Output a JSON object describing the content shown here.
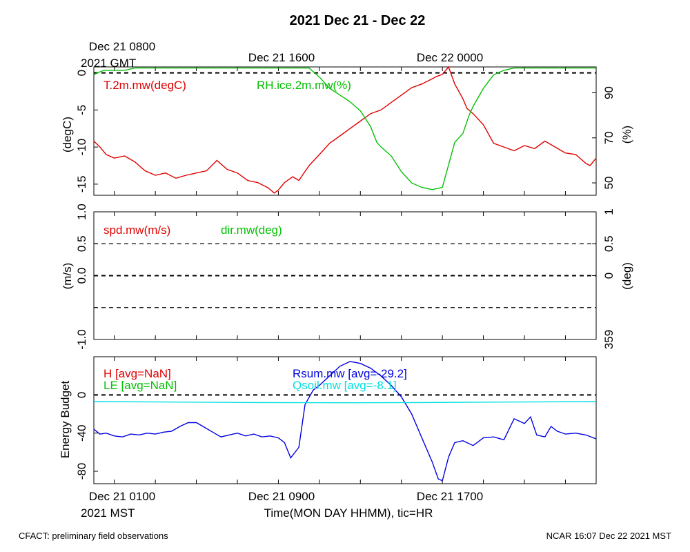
{
  "title": "2021 Dec 21 - Dec 22",
  "top_axis": {
    "gmt_label": "2021 GMT",
    "labels": [
      {
        "text": "Dec 21 0800",
        "hour": 0
      },
      {
        "text": "Dec 21 1600",
        "hour": 8
      },
      {
        "text": "Dec 22 0000",
        "hour": 16
      }
    ]
  },
  "bottom_axis": {
    "mst_label": "2021 MST",
    "xlabel": "Time(MON DAY HHMM), tic=HR",
    "labels": [
      {
        "text": "Dec 21 0100",
        "hour": 0
      },
      {
        "text": "Dec 21 0900",
        "hour": 8
      },
      {
        "text": "Dec 21 1700",
        "hour": 16
      }
    ]
  },
  "footer": {
    "left": "CFACT: preliminary field observations",
    "right": "NCAR 16:07 Dec 22 2021 MST"
  },
  "colors": {
    "red": "#e00000",
    "green": "#00c000",
    "blue": "#0000e0",
    "cyan": "#00e0e0",
    "axis": "#000000"
  },
  "chart_data": [
    {
      "type": "line",
      "panel": "temperature-rh",
      "x_unit": "hours since Dec 21 0100 MST",
      "xlim": [
        -1,
        23.5
      ],
      "ylabel_left": "(degC)",
      "ylim_left": [
        -16.5,
        0.8
      ],
      "yticks_left": [
        {
          "v": 0,
          "t": "0"
        },
        {
          "v": -5,
          "t": "-5"
        },
        {
          "v": -10,
          "t": "-10"
        },
        {
          "v": -15,
          "t": "-15"
        }
      ],
      "ylabel_right": "(%)",
      "ylim_right": [
        44.5,
        101.5
      ],
      "yticks_right": [
        {
          "v": 90,
          "t": "90"
        },
        {
          "v": 70,
          "t": "70"
        },
        {
          "v": 50,
          "t": "50"
        }
      ],
      "zero_line": 0,
      "series": [
        {
          "name": "T.2m.mw(degC)",
          "color": "red",
          "axis": "left",
          "x": [
            -1,
            -0.7,
            -0.4,
            0,
            0.5,
            1,
            1.5,
            2,
            2.5,
            3,
            3.5,
            4,
            4.5,
            5,
            5.5,
            6,
            6.5,
            7,
            7.5,
            7.8,
            8,
            8.3,
            8.7,
            9,
            9.5,
            10,
            10.5,
            11,
            11.5,
            12,
            12.5,
            13,
            13.5,
            14,
            14.5,
            15,
            15.5,
            15.7,
            16,
            16.3,
            16.6,
            17,
            17.2,
            17.5,
            18,
            18.5,
            19,
            19.5,
            20,
            20.5,
            21,
            21.5,
            22,
            22.5,
            23,
            23.2,
            23.5
          ],
          "y": [
            -9.2,
            -10,
            -11,
            -11.5,
            -11.2,
            -12,
            -13.2,
            -13.8,
            -13.5,
            -14.2,
            -13.8,
            -13.5,
            -13.2,
            -11.8,
            -13,
            -13.5,
            -14.5,
            -14.8,
            -15.5,
            -16.2,
            -15.8,
            -14.8,
            -14,
            -14.5,
            -12.5,
            -11,
            -9.5,
            -8.5,
            -7.5,
            -6.5,
            -5.5,
            -5,
            -4,
            -3,
            -2,
            -1.5,
            -0.8,
            -0.5,
            -0.2,
            0.8,
            -1.5,
            -3.5,
            -4.8,
            -5.5,
            -7,
            -9.5,
            -10,
            -10.5,
            -9.8,
            -10.2,
            -9.2,
            -10,
            -10.8,
            -11,
            -12.2,
            -12.5,
            -11.5
          ]
        },
        {
          "name": "RH.ice.2m.mw(%)",
          "color": "green",
          "axis": "right",
          "x": [
            -1,
            -0.8,
            -0.5,
            0,
            0.5,
            1,
            1.5,
            2,
            3,
            4,
            5,
            6,
            7,
            8,
            9,
            9.5,
            10,
            10.5,
            11,
            11.5,
            12,
            12.5,
            12.8,
            13,
            13.5,
            14,
            14.5,
            15,
            15.5,
            16,
            16.3,
            16.6,
            17,
            17.3,
            17.5,
            18,
            18.5,
            19,
            19.5,
            20,
            21,
            22,
            23,
            23.5
          ],
          "y": [
            98,
            99,
            100,
            100,
            100,
            101,
            101,
            101,
            101,
            101,
            101,
            101,
            101,
            101,
            101,
            101,
            97,
            92,
            89,
            86,
            82,
            75,
            68,
            66,
            62,
            55,
            50,
            48,
            47,
            48,
            58,
            68,
            72,
            80,
            84,
            92,
            98,
            100,
            101,
            101,
            101,
            101,
            101,
            101
          ]
        }
      ]
    },
    {
      "type": "line",
      "panel": "wind",
      "x_unit": "hours since Dec 21 0100 MST",
      "xlim": [
        -1,
        23.5
      ],
      "ylabel_left": "(m/s)",
      "ylim_left": [
        -1,
        1
      ],
      "yticks_left": [
        {
          "v": 1,
          "t": "1.0"
        },
        {
          "v": 0.5,
          "t": "0.5"
        },
        {
          "v": 0,
          "t": "0.0"
        },
        {
          "v": -1,
          "t": "-1.0"
        }
      ],
      "ylabel_right": "(deg)",
      "yticks_right": [
        {
          "v": 1,
          "t": "1"
        },
        {
          "v": 0.5,
          "t": "0.5"
        },
        {
          "v": 0,
          "t": "0"
        },
        {
          "v": -1,
          "t": "359"
        }
      ],
      "dashed_lines": [
        0.5,
        0,
        -0.5
      ],
      "series": [
        {
          "name": "spd.mw(m/s)",
          "color": "red",
          "x": [],
          "y": []
        },
        {
          "name": "dir.mw(deg)",
          "color": "green",
          "x": [],
          "y": []
        }
      ]
    },
    {
      "type": "line",
      "panel": "energy-budget",
      "x_unit": "hours since Dec 21 0100 MST",
      "xlim": [
        -1,
        23.5
      ],
      "ylabel_left": "Energy Budget",
      "ylim_left": [
        -93,
        40
      ],
      "yticks_left": [
        {
          "v": 0,
          "t": "0"
        },
        {
          "v": -40,
          "t": "-40"
        },
        {
          "v": -80,
          "t": "-80"
        }
      ],
      "zero_line": 0,
      "series": [
        {
          "name": "H [avg=NaN]",
          "color": "red",
          "x": [],
          "y": []
        },
        {
          "name": "LE [avg=NaN]",
          "color": "green",
          "x": [],
          "y": []
        },
        {
          "name": "Rsum.mw [avg=-29.2]",
          "color": "blue",
          "x": [
            -1,
            -0.7,
            -0.4,
            0,
            0.4,
            0.8,
            1.2,
            1.6,
            2,
            2.4,
            2.8,
            3.2,
            3.6,
            4,
            4.4,
            4.8,
            5.2,
            5.6,
            6,
            6.4,
            6.8,
            7.2,
            7.6,
            8,
            8.3,
            8.6,
            9,
            9.3,
            9.7,
            10,
            10.5,
            11,
            11.5,
            12,
            12.5,
            13,
            13.5,
            14,
            14.5,
            15,
            15.5,
            15.8,
            16,
            16.3,
            16.6,
            17,
            17.5,
            18,
            18.5,
            19,
            19.5,
            20,
            20.3,
            20.6,
            21,
            21.3,
            21.6,
            22,
            22.5,
            23,
            23.5
          ],
          "y": [
            -36,
            -41,
            -40,
            -43,
            -44,
            -41,
            -42,
            -40,
            -41,
            -39,
            -38,
            -33,
            -29,
            -29,
            -34,
            -39,
            -44,
            -42,
            -40,
            -43,
            -41,
            -44,
            -43,
            -45,
            -50,
            -66,
            -55,
            -10,
            5,
            10,
            20,
            30,
            35,
            33,
            28,
            20,
            10,
            -2,
            -20,
            -45,
            -70,
            -88,
            -90,
            -65,
            -50,
            -48,
            -53,
            -45,
            -44,
            -47,
            -25,
            -30,
            -23,
            -42,
            -44,
            -33,
            -38,
            -41,
            -40,
            -42,
            -46
          ]
        },
        {
          "name": "Qsoil.mw [avg=-8.1]",
          "color": "cyan",
          "x": [
            -1,
            3,
            7,
            11,
            15,
            19,
            23.5
          ],
          "y": [
            -7,
            -7.5,
            -8,
            -8.2,
            -8,
            -7.5,
            -7
          ]
        }
      ]
    }
  ]
}
